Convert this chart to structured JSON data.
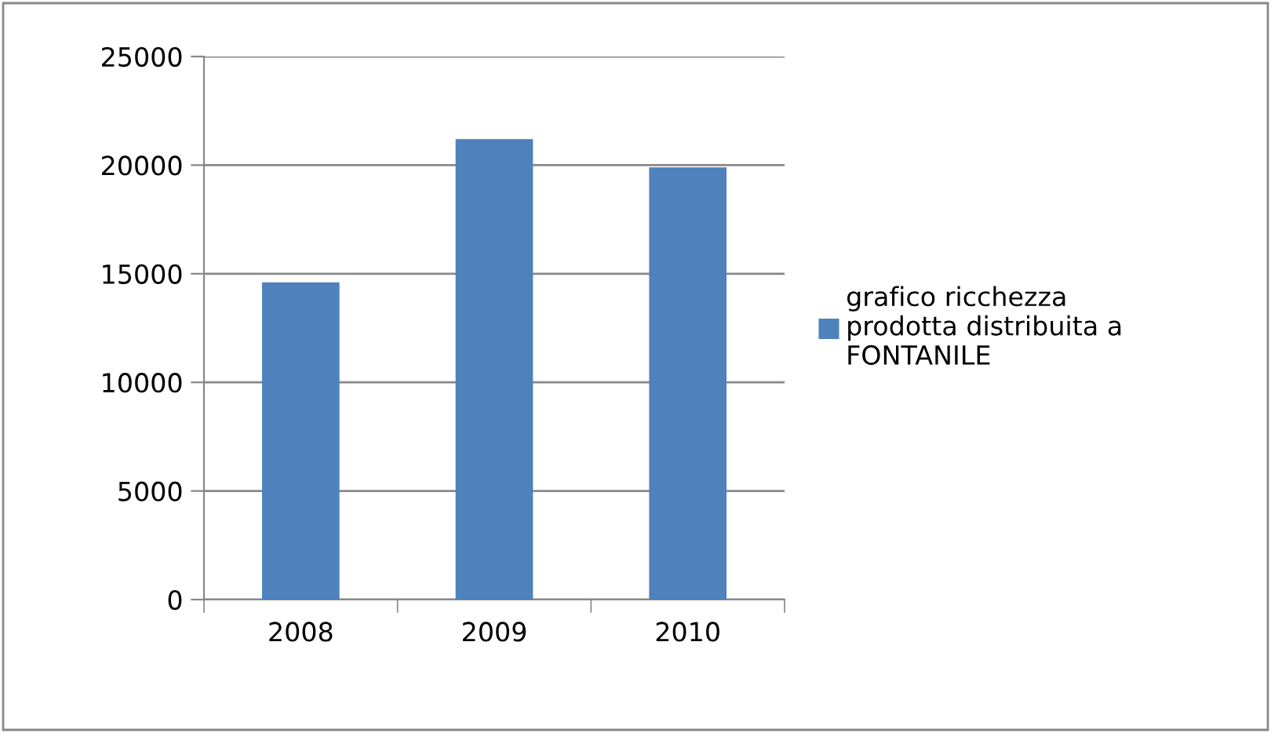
{
  "chart_data": {
    "type": "bar",
    "categories": [
      "2008",
      "2009",
      "2010"
    ],
    "series": [
      {
        "name": "grafico ricchezza\nprodotta distribuita a\nFONTANILE",
        "color": "#4f81bd",
        "values": [
          14600,
          21200,
          19900
        ]
      }
    ],
    "ylim": [
      0,
      25000
    ],
    "yticks": [
      0,
      5000,
      10000,
      15000,
      20000,
      25000
    ],
    "grid": "y",
    "legend": "right"
  }
}
